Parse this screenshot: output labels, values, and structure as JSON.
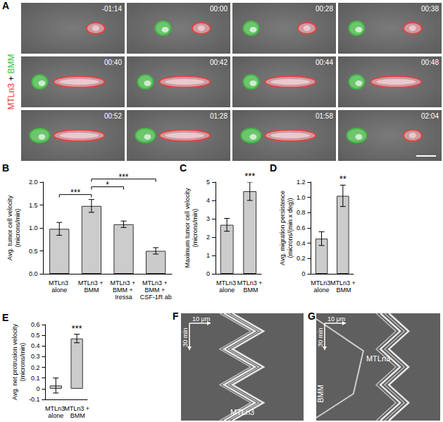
{
  "panel_a": {
    "panel": "A",
    "side_label": [
      {
        "text": "MTLn3",
        "color": "#e8413c"
      },
      {
        "text": "+",
        "color": "#000000"
      },
      {
        "text": "BMM",
        "color": "#3fbf3f"
      }
    ],
    "frames": [
      "-01:14",
      "00:00",
      "00:28",
      "00:38",
      "00:40",
      "00:42",
      "00:44",
      "00:48",
      "00:52",
      "01:28",
      "01:58",
      "02:04"
    ]
  },
  "chart_data": [
    {
      "panel": "B",
      "type": "bar",
      "ylabel": "Avg. tumor cell velocity\n(microns/min)",
      "categories": [
        "MTLn3 alone",
        "MTLn3 + BMM",
        "MTLn3 + BMM + Iressa",
        "MTLn3 + BMM + CSF-1R ab"
      ],
      "values": [
        0.98,
        1.48,
        1.08,
        0.5
      ],
      "errors": [
        0.14,
        0.14,
        0.07,
        0.07
      ],
      "color": "#cccccc",
      "ylim": [
        0,
        2.0
      ],
      "yticks": [
        {
          "value": 0,
          "label": "0.0"
        },
        {
          "value": 0.5,
          "label": "0.5"
        },
        {
          "value": 1.0,
          "label": "1.0"
        },
        {
          "value": 1.5,
          "label": "1.5"
        },
        {
          "value": 2.0,
          "label": "2.0"
        }
      ],
      "grid": false,
      "annotations": [
        {
          "text": "***",
          "between": [
            0,
            1
          ]
        },
        {
          "text": "*",
          "between": [
            1,
            2
          ]
        },
        {
          "text": "***",
          "between": [
            1,
            3
          ]
        }
      ]
    },
    {
      "panel": "C",
      "type": "bar",
      "ylabel": "Maximum tumor cell velocity\n(microns/min)",
      "categories": [
        "MTLn3 alone",
        "MTLn3 + BMM"
      ],
      "values": [
        2.67,
        4.5
      ],
      "errors": [
        0.35,
        0.5
      ],
      "color": "#cccccc",
      "ylim": [
        0,
        5
      ],
      "yticks": [
        0,
        1,
        2,
        3,
        4,
        5
      ],
      "grid": false,
      "annotations": [
        {
          "text": "***",
          "above": 1
        }
      ]
    },
    {
      "panel": "D",
      "type": "bar",
      "ylabel": "Avg. migration persistence\n(microns/(min x deg))",
      "categories": [
        "MTLn3 alone",
        "MTLn3 + BMM"
      ],
      "values": [
        0.46,
        1.02
      ],
      "errors": [
        0.09,
        0.14
      ],
      "color": "#cccccc",
      "ylim": [
        0,
        1.2
      ],
      "yticks": [
        0,
        0.2,
        0.4,
        0.6,
        0.8,
        {
          "value": 1.0,
          "label": "1.0"
        },
        1.2
      ],
      "grid": false,
      "annotations": [
        {
          "text": "**",
          "above": 1
        }
      ]
    },
    {
      "panel": "E",
      "type": "bar",
      "ylabel": "Avg. net protrusion velocity\n(microns/min)",
      "categories": [
        "MTLn3 alone",
        "MTLn3 + BMM"
      ],
      "values": [
        0.03,
        0.47
      ],
      "errors": [
        0.07,
        0.04
      ],
      "color": "#cccccc",
      "ylim": [
        -0.1,
        0.6
      ],
      "yticks": [
        -0.1,
        0,
        0.1,
        0.2,
        0.3,
        0.4,
        0.5,
        0.6
      ],
      "grid": false,
      "annotations": [
        {
          "text": "***",
          "above": 1
        }
      ]
    }
  ],
  "panel_f": {
    "panel": "F",
    "scale_x": "10 μm",
    "scale_y": "30 min",
    "cells": [
      "MTLn3"
    ]
  },
  "panel_g": {
    "panel": "G",
    "scale_x": "10 μm",
    "scale_y": "30 min",
    "cells": [
      "BMM",
      "MTLn3"
    ]
  }
}
